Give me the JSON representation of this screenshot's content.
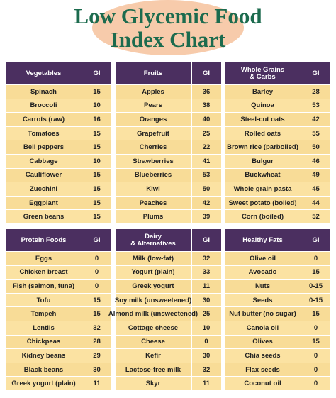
{
  "header": {
    "title": "Low Glycemic Food\nIndex Chart"
  },
  "tables": [
    {
      "columns": [
        "Vegetables",
        "GI"
      ],
      "rows": [
        [
          "Spinach",
          15
        ],
        [
          "Broccoli",
          10
        ],
        [
          "Carrots (raw)",
          16
        ],
        [
          "Tomatoes",
          15
        ],
        [
          "Bell peppers",
          15
        ],
        [
          "Cabbage",
          10
        ],
        [
          "Cauliflower",
          15
        ],
        [
          "Zucchini",
          15
        ],
        [
          "Eggplant",
          15
        ],
        [
          "Green beans",
          15
        ]
      ]
    },
    {
      "columns": [
        "Fruits",
        "GI"
      ],
      "rows": [
        [
          "Apples",
          36
        ],
        [
          "Pears",
          38
        ],
        [
          "Oranges",
          40
        ],
        [
          "Grapefruit",
          25
        ],
        [
          "Cherries",
          22
        ],
        [
          "Strawberries",
          41
        ],
        [
          "Blueberries",
          53
        ],
        [
          "Kiwi",
          50
        ],
        [
          "Peaches",
          42
        ],
        [
          "Plums",
          39
        ]
      ]
    },
    {
      "columns": [
        "Whole Grains\n& Carbs",
        "GI"
      ],
      "rows": [
        [
          "Barley",
          28
        ],
        [
          "Quinoa",
          53
        ],
        [
          "Steel-cut oats",
          42
        ],
        [
          "Rolled oats",
          55
        ],
        [
          "Brown rice (parboiled)",
          50
        ],
        [
          "Bulgur",
          46
        ],
        [
          "Buckwheat",
          49
        ],
        [
          "Whole grain pasta",
          45
        ],
        [
          "Sweet potato (boiled)",
          44
        ],
        [
          "Corn (boiled)",
          52
        ]
      ]
    },
    {
      "columns": [
        "Protein Foods",
        "GI"
      ],
      "rows": [
        [
          "Eggs",
          0
        ],
        [
          "Chicken breast",
          0
        ],
        [
          "Fish (salmon, tuna)",
          0
        ],
        [
          "Tofu",
          15
        ],
        [
          "Tempeh",
          15
        ],
        [
          "Lentils",
          32
        ],
        [
          "Chickpeas",
          28
        ],
        [
          "Kidney beans",
          29
        ],
        [
          "Black beans",
          30
        ],
        [
          "Greek yogurt (plain)",
          11
        ]
      ]
    },
    {
      "columns": [
        "Dairy\n& Alternatives",
        "GI"
      ],
      "rows": [
        [
          "Milk (low-fat)",
          32
        ],
        [
          "Yogurt (plain)",
          33
        ],
        [
          "Greek yogurt",
          11
        ],
        [
          "Soy milk (unsweetened)",
          30
        ],
        [
          "Almond milk (unsweetened)",
          25
        ],
        [
          "Cottage cheese",
          10
        ],
        [
          "Cheese",
          0
        ],
        [
          "Kefir",
          30
        ],
        [
          "Lactose-free milk",
          32
        ],
        [
          "Skyr",
          11
        ]
      ]
    },
    {
      "columns": [
        "Healthy Fats",
        "GI"
      ],
      "rows": [
        [
          "Olive oil",
          0
        ],
        [
          "Avocado",
          15
        ],
        [
          "Nuts",
          "0-15"
        ],
        [
          "Seeds",
          "0-15"
        ],
        [
          "Nut butter (no sugar)",
          15
        ],
        [
          "Canola oil",
          0
        ],
        [
          "Olives",
          15
        ],
        [
          "Chia seeds",
          0
        ],
        [
          "Flax seeds",
          0
        ],
        [
          "Coconut oil",
          0
        ]
      ]
    }
  ]
}
